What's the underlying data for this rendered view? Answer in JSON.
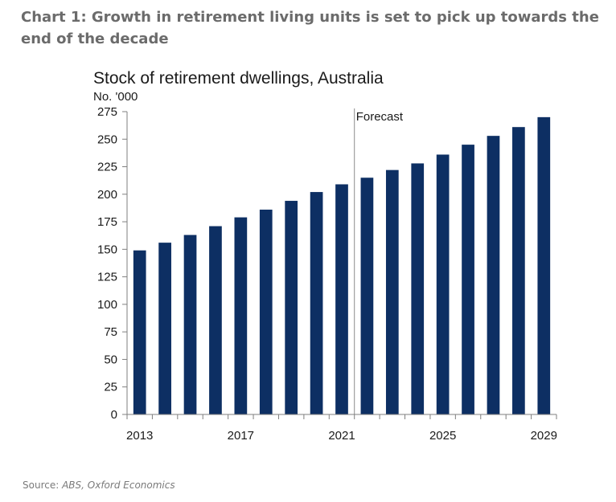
{
  "headline": "Chart 1: Growth in retirement living units is set to pick up towards the end of the decade",
  "source_label": "Source:",
  "source_text": "ABS, Oxford Economics",
  "colors": {
    "bar": "#0d2f63",
    "axis": "#7f7f7f",
    "headline": "#6b6b6b"
  },
  "chart_data": {
    "type": "bar",
    "title": "Stock of retirement dwellings, Australia",
    "ylabel": "No. '000",
    "xlabel": "",
    "forecast_label": "Forecast",
    "forecast_after": "2021",
    "ylim": [
      0,
      275
    ],
    "yticks": [
      0,
      25,
      50,
      75,
      100,
      125,
      150,
      175,
      200,
      225,
      250,
      275
    ],
    "xtick_labels": [
      "2013",
      "2017",
      "2021",
      "2025",
      "2029"
    ],
    "grid": false,
    "categories": [
      "2013",
      "2014",
      "2015",
      "2016",
      "2017",
      "2018",
      "2019",
      "2020",
      "2021",
      "2022",
      "2023",
      "2024",
      "2025",
      "2026",
      "2027",
      "2028",
      "2029"
    ],
    "values": [
      149,
      156,
      163,
      171,
      179,
      186,
      194,
      202,
      209,
      215,
      222,
      228,
      236,
      245,
      253,
      261,
      270
    ]
  }
}
